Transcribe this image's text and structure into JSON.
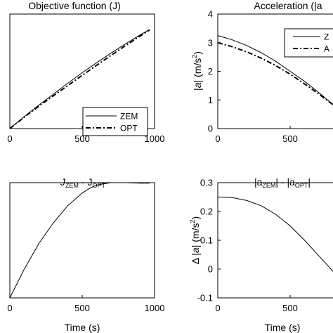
{
  "chart_data": [
    {
      "type": "line",
      "title": "Objective function (J)",
      "xlabel": "",
      "ylabel": "",
      "xlim": [
        0,
        1000
      ],
      "xticks": [
        "0",
        "500",
        "1000"
      ],
      "ylim": [
        0,
        4
      ],
      "yticks": [],
      "legend": "lower-right",
      "grid": false,
      "series": [
        {
          "name": "ZEM",
          "style": "solid",
          "x": [
            0,
            100,
            200,
            300,
            400,
            500,
            600,
            700,
            800,
            900,
            965
          ],
          "y": [
            0,
            0.42,
            0.82,
            1.2,
            1.58,
            1.95,
            2.3,
            2.64,
            2.96,
            3.27,
            3.46
          ]
        },
        {
          "name": "OPT",
          "style": "dashdot",
          "x": [
            0,
            100,
            200,
            300,
            400,
            500,
            600,
            700,
            800,
            900,
            965
          ],
          "y": [
            0,
            0.4,
            0.78,
            1.14,
            1.5,
            1.86,
            2.21,
            2.56,
            2.9,
            3.23,
            3.44
          ]
        }
      ]
    },
    {
      "type": "line",
      "title": "Acceleration (|a",
      "xlabel": "",
      "ylabel": "|a| (m/s²)",
      "ylabel_parts": [
        "|",
        "a",
        "| (m/s",
        "2",
        ")"
      ],
      "xlim": [
        0,
        1000
      ],
      "xticks": [
        "0",
        "500"
      ],
      "ylim": [
        0,
        4
      ],
      "yticks": [
        "0",
        "1",
        "2",
        "3",
        "4"
      ],
      "legend": "top-right",
      "legend_partial": [
        "Z",
        "A"
      ],
      "grid": false,
      "series": [
        {
          "name": "",
          "style": "solid",
          "x": [
            0,
            100,
            200,
            300,
            400,
            500,
            600,
            700,
            800
          ],
          "y": [
            3.25,
            3.1,
            2.9,
            2.65,
            2.35,
            2.0,
            1.65,
            1.25,
            0.82
          ]
        },
        {
          "name": "",
          "style": "dashdot",
          "x": [
            0,
            100,
            200,
            300,
            400,
            500,
            600,
            700,
            800
          ],
          "y": [
            3.0,
            2.86,
            2.68,
            2.46,
            2.2,
            1.9,
            1.56,
            1.2,
            0.82
          ]
        }
      ]
    },
    {
      "type": "line",
      "title": "J ZEM - J OPT",
      "title_parts": [
        "J",
        "ZEM",
        " - J",
        "OPT"
      ],
      "xlabel": "Time (s)",
      "ylabel": "",
      "xlim": [
        0,
        1000
      ],
      "xticks": [
        "0",
        "500",
        "1000"
      ],
      "ylim": [
        0,
        1
      ],
      "yticks": [],
      "grid": false,
      "series": [
        {
          "name": "",
          "style": "solid",
          "x": [
            0,
            100,
            200,
            300,
            400,
            500,
            550,
            600,
            650,
            700,
            800,
            900,
            965
          ],
          "y": [
            0,
            0.25,
            0.47,
            0.65,
            0.8,
            0.91,
            0.95,
            0.98,
            0.99,
            1.0,
            1.0,
            0.995,
            0.995
          ]
        }
      ]
    },
    {
      "type": "line",
      "title": "|a ZEM| - |a OPT|",
      "title_parts": [
        "|a",
        "ZEM",
        "| - |a",
        "OPT",
        "|"
      ],
      "xlabel": "Time (s)",
      "ylabel": "Δ |a| (m/s²)",
      "ylabel_parts": [
        "Δ |",
        "a",
        "| (m/s",
        "2",
        ")"
      ],
      "xlim": [
        0,
        1000
      ],
      "xticks": [
        "0",
        "500"
      ],
      "ylim": [
        -0.1,
        0.3
      ],
      "yticks": [
        "-0.1",
        "0",
        "0.1",
        "0.2",
        "0.3"
      ],
      "grid": false,
      "series": [
        {
          "name": "",
          "style": "solid",
          "x": [
            0,
            100,
            200,
            300,
            400,
            500,
            600,
            700,
            800
          ],
          "y": [
            0.25,
            0.248,
            0.238,
            0.22,
            0.19,
            0.15,
            0.1,
            0.045,
            -0.01
          ]
        }
      ]
    }
  ]
}
